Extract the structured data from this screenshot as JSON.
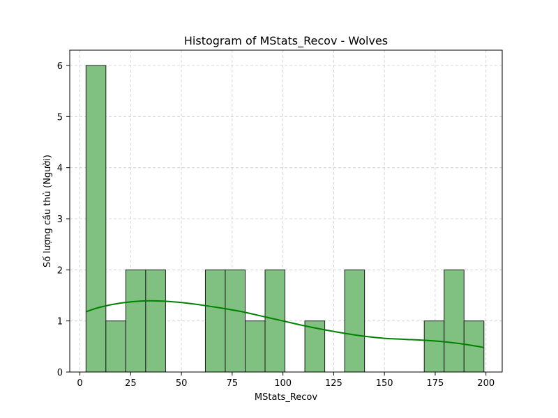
{
  "chart_data": {
    "type": "bar",
    "title": "Histogram of MStats_Recov - Wolves",
    "xlabel": "MStats_Recov",
    "ylabel": "Số lượng cầu thủ (Người)",
    "xlim": [
      -5,
      208
    ],
    "ylim": [
      0,
      6.3
    ],
    "x_ticks": [
      0,
      25,
      50,
      75,
      100,
      125,
      150,
      175,
      200
    ],
    "y_ticks": [
      0,
      1,
      2,
      3,
      4,
      5,
      6
    ],
    "grid": true,
    "bin_edges": [
      3,
      12.8,
      22.6,
      32.4,
      42.2,
      52,
      61.8,
      71.6,
      81.4,
      91.2,
      101,
      110.8,
      120.6,
      130.4,
      140.2,
      150,
      159.8,
      169.6,
      179.4,
      189.2,
      199
    ],
    "values": [
      6,
      1,
      2,
      2,
      0,
      0,
      2,
      2,
      1,
      2,
      0,
      1,
      0,
      2,
      0,
      0,
      0,
      1,
      2,
      1
    ],
    "kde": {
      "x": [
        3,
        10,
        20,
        30,
        40,
        50,
        60,
        70,
        80,
        90,
        100,
        110,
        120,
        130,
        140,
        150,
        160,
        170,
        180,
        190,
        199
      ],
      "y": [
        1.18,
        1.27,
        1.35,
        1.39,
        1.39,
        1.36,
        1.31,
        1.25,
        1.18,
        1.09,
        1.0,
        0.91,
        0.83,
        0.76,
        0.7,
        0.66,
        0.64,
        0.62,
        0.59,
        0.54,
        0.48
      ]
    },
    "colors": {
      "bar": "#80c080",
      "edge": "#1a1a1a",
      "kde": "#008000"
    }
  }
}
